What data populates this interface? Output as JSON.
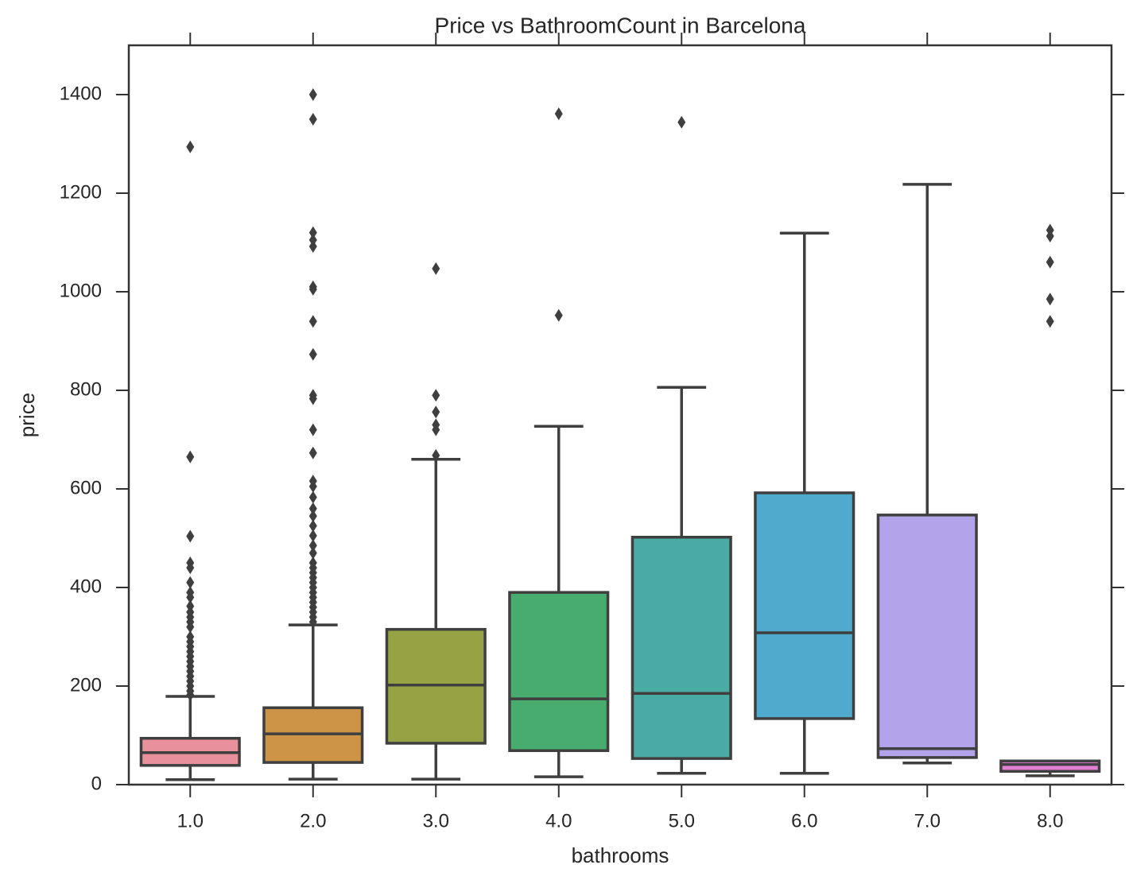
{
  "chart_data": {
    "type": "box",
    "title": "Price vs BathroomCount in Barcelona",
    "x_label": "bathrooms",
    "y_label": "price",
    "categories": [
      "1.0",
      "2.0",
      "3.0",
      "4.0",
      "5.0",
      "6.0",
      "7.0",
      "8.0"
    ],
    "boxes": [
      {
        "whislo": 10,
        "q1": 39,
        "med": 65,
        "q3": 94,
        "whishi": 179,
        "color": "#e8909b",
        "fliers": [
          1294,
          665,
          504,
          450,
          440,
          410,
          390,
          380,
          362,
          350,
          340,
          330,
          320,
          300,
          290,
          280,
          270,
          260,
          250,
          240,
          230,
          220,
          210,
          200,
          190,
          182
        ]
      },
      {
        "whislo": 11,
        "q1": 45,
        "med": 103,
        "q3": 156,
        "whishi": 324,
        "color": "#cd9347",
        "fliers": [
          1400,
          1350,
          1120,
          1105,
          1092,
          1010,
          1005,
          940,
          873,
          790,
          783,
          720,
          673,
          616,
          605,
          583,
          560,
          545,
          525,
          505,
          485,
          470,
          450,
          440,
          430,
          420,
          410,
          400,
          390,
          380,
          370,
          360,
          350,
          340,
          330
        ]
      },
      {
        "whislo": 11,
        "q1": 84,
        "med": 202,
        "q3": 315,
        "whishi": 660,
        "color": "#97a244",
        "fliers": [
          1047,
          790,
          756,
          730,
          720,
          668
        ]
      },
      {
        "whislo": 16,
        "q1": 69,
        "med": 174,
        "q3": 390,
        "whishi": 727,
        "color": "#49ac6f",
        "fliers": [
          1361,
          952
        ]
      },
      {
        "whislo": 23,
        "q1": 53,
        "med": 185,
        "q3": 502,
        "whishi": 806,
        "color": "#4aaba4",
        "fliers": [
          1344
        ]
      },
      {
        "whislo": 23,
        "q1": 134,
        "med": 308,
        "q3": 592,
        "whishi": 1119,
        "color": "#50aacd",
        "fliers": []
      },
      {
        "whislo": 44,
        "q1": 55,
        "med": 73,
        "q3": 547,
        "whishi": 1218,
        "color": "#b3a3ea",
        "fliers": []
      },
      {
        "whislo": 18,
        "q1": 27,
        "med": 41,
        "q3": 48,
        "whishi": 48,
        "color": "#e27fd0",
        "fliers": [
          1125,
          1113,
          1060,
          985,
          940
        ]
      }
    ],
    "ylim": [
      0,
      1500
    ],
    "yticks": [
      0,
      200,
      400,
      600,
      800,
      1000,
      1200,
      1400
    ]
  }
}
